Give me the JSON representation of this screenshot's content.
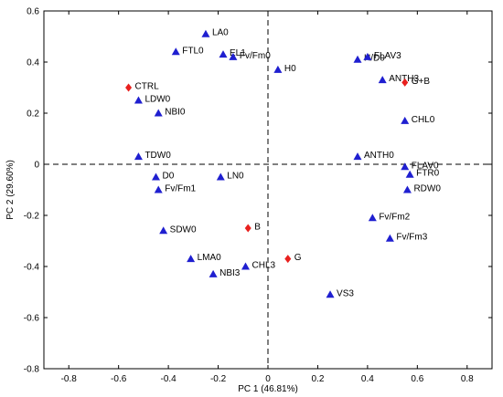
{
  "chart_data": {
    "type": "scatter",
    "title": "",
    "xlabel": "PC 1 (46.81%)",
    "ylabel": "PC 2 (29.60%)",
    "xlim": [
      -0.9,
      0.9
    ],
    "ylim": [
      -0.8,
      0.6
    ],
    "xticks": [
      -0.8,
      -0.6,
      -0.4,
      -0.2,
      0,
      0.2,
      0.4,
      0.6,
      0.8
    ],
    "yticks": [
      -0.8,
      -0.6,
      -0.4,
      -0.2,
      0,
      0.2,
      0.4,
      0.6
    ],
    "xtick_labels": [
      "-0.8",
      "-0.6",
      "-0.4",
      "-0.2",
      "0",
      "0.2",
      "0.4",
      "0.6",
      "0.8"
    ],
    "ytick_labels": [
      "-0.8",
      "-0.6",
      "-0.4",
      "-0.2",
      "0",
      "0.2",
      "0.4",
      "0.6"
    ],
    "grid": false,
    "reference_lines": {
      "x": 0,
      "y": 0,
      "style": "dashed"
    },
    "series": [
      {
        "marker": "triangle",
        "color": "#1f1fd0",
        "points": [
          {
            "label": "LA0",
            "x": -0.25,
            "y": 0.51
          },
          {
            "label": "FTL0",
            "x": -0.37,
            "y": 0.44
          },
          {
            "label": "EL1",
            "x": -0.18,
            "y": 0.43
          },
          {
            "label": "Fv/Fm0",
            "x": -0.14,
            "y": 0.42
          },
          {
            "label": "H0",
            "x": 0.04,
            "y": 0.37
          },
          {
            "label": "H/D0",
            "x": 0.36,
            "y": 0.41
          },
          {
            "label": "FLAV3",
            "x": 0.4,
            "y": 0.42
          },
          {
            "label": "ANTH3",
            "x": 0.46,
            "y": 0.33
          },
          {
            "label": "LDW0",
            "x": -0.52,
            "y": 0.25
          },
          {
            "label": "NBI0",
            "x": -0.44,
            "y": 0.2
          },
          {
            "label": "CHL0",
            "x": 0.55,
            "y": 0.17
          },
          {
            "label": "TDW0",
            "x": -0.52,
            "y": 0.03
          },
          {
            "label": "ANTH0",
            "x": 0.36,
            "y": 0.03
          },
          {
            "label": "FLAV0",
            "x": 0.55,
            "y": -0.01
          },
          {
            "label": "FTR0",
            "x": 0.57,
            "y": -0.04
          },
          {
            "label": "D0",
            "x": -0.45,
            "y": -0.05
          },
          {
            "label": "LN0",
            "x": -0.19,
            "y": -0.05
          },
          {
            "label": "Fv/Fm1",
            "x": -0.44,
            "y": -0.1
          },
          {
            "label": "RDW0",
            "x": 0.56,
            "y": -0.1
          },
          {
            "label": "Fv/Fm2",
            "x": 0.42,
            "y": -0.21
          },
          {
            "label": "SDW0",
            "x": -0.42,
            "y": -0.26
          },
          {
            "label": "Fv/Fm3",
            "x": 0.49,
            "y": -0.29
          },
          {
            "label": "LMA0",
            "x": -0.31,
            "y": -0.37
          },
          {
            "label": "CHL3",
            "x": -0.09,
            "y": -0.4
          },
          {
            "label": "NBI3",
            "x": -0.22,
            "y": -0.43
          },
          {
            "label": "VS3",
            "x": 0.25,
            "y": -0.51
          }
        ]
      },
      {
        "marker": "diamond",
        "color": "#e8201e",
        "points": [
          {
            "label": "CTRL",
            "x": -0.56,
            "y": 0.3
          },
          {
            "label": "G+B",
            "x": 0.55,
            "y": 0.32
          },
          {
            "label": "B",
            "x": -0.08,
            "y": -0.25
          },
          {
            "label": "G",
            "x": 0.08,
            "y": -0.37
          }
        ]
      }
    ]
  }
}
